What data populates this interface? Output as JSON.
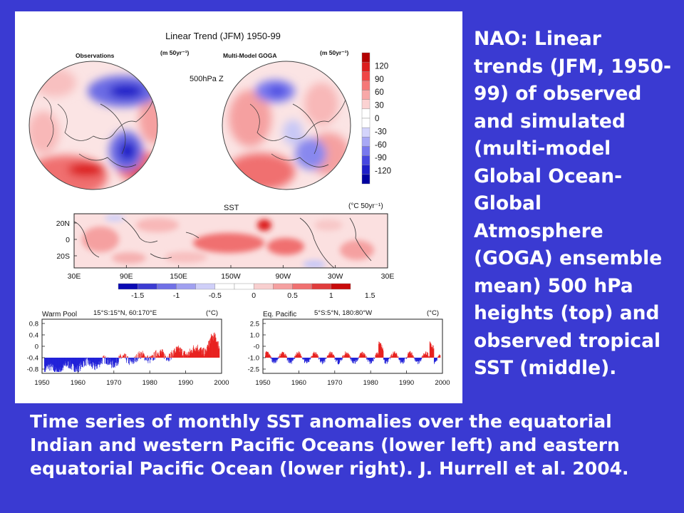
{
  "slide": {
    "side_text": "NAO: Linear trends (JFM, 1950-99) of observed and simulated (multi-model Global Ocean-Global Atmosphere (GOGA) ensemble mean) 500 hPa heights (top) and observed tropical SST (middle).",
    "bottom_text": "Time series of monthly SST anomalies over the equatorial Indian and western Pacific Oceans (lower left) and eastern equatorial Pacific Ocean (lower right).  J. Hurrell et al. 2004."
  },
  "figure": {
    "title": "Linear Trend (JFM) 1950-99",
    "obs_label": "Observations",
    "obs_units": "(m 50yr⁻¹)",
    "model_label": "Multi-Model GOGA",
    "model_units": "(m 50yr⁻¹)",
    "z500_label": "500hPa Z",
    "colorbar_z": {
      "labels": [
        "120",
        "90",
        "60",
        "30",
        "0",
        "-30",
        "-60",
        "-90",
        "-120"
      ],
      "colors": [
        "#b40000",
        "#dc1e1e",
        "#f04646",
        "#f57878",
        "#f8a8a8",
        "#fbd2d2",
        "#ffffff",
        "#ffffff",
        "#d4d4fb",
        "#a8a8f5",
        "#7878ee",
        "#4646e0",
        "#1e1ec8",
        "#0000a0"
      ]
    },
    "sst_label": "SST",
    "sst_units": "(°C 50yr⁻¹)",
    "sst_lat_labels": [
      "20N",
      "0",
      "20S"
    ],
    "sst_lon_labels": [
      "30E",
      "90E",
      "150E",
      "150W",
      "90W",
      "30W",
      "30E"
    ],
    "colorbar_sst": {
      "labels": [
        "-1.5",
        "-1",
        "-0.5",
        "0",
        "0.5",
        "1",
        "1.5"
      ],
      "colors": [
        "#0a0ab4",
        "#3c3cd2",
        "#7070e6",
        "#a0a0f0",
        "#cfcff8",
        "#ffffff",
        "#ffffff",
        "#f8cfcf",
        "#f5a0a0",
        "#f07070",
        "#e03c3c",
        "#c80a0a"
      ]
    },
    "ts_left": {
      "title": "Warm Pool",
      "region": "15°S:15°N, 60:170°E",
      "units": "(°C)",
      "y_ticks": [
        "0.8",
        "0.4",
        "0",
        "-0.4",
        "-0.8"
      ],
      "x_ticks": [
        "1950",
        "1960",
        "1970",
        "1980",
        "1990",
        "2000"
      ]
    },
    "ts_right": {
      "title": "Eq. Pacific",
      "region": "5°S:5°N, 180:80°W",
      "units": "(°C)",
      "y_ticks": [
        "2.5",
        "1.0",
        "-0",
        "-1.0",
        "-2.5"
      ],
      "x_ticks": [
        "1950",
        "1960",
        "1970",
        "1980",
        "1990",
        "2000"
      ]
    },
    "colors": {
      "positive": "#e8201e",
      "negative": "#2020d8"
    }
  }
}
